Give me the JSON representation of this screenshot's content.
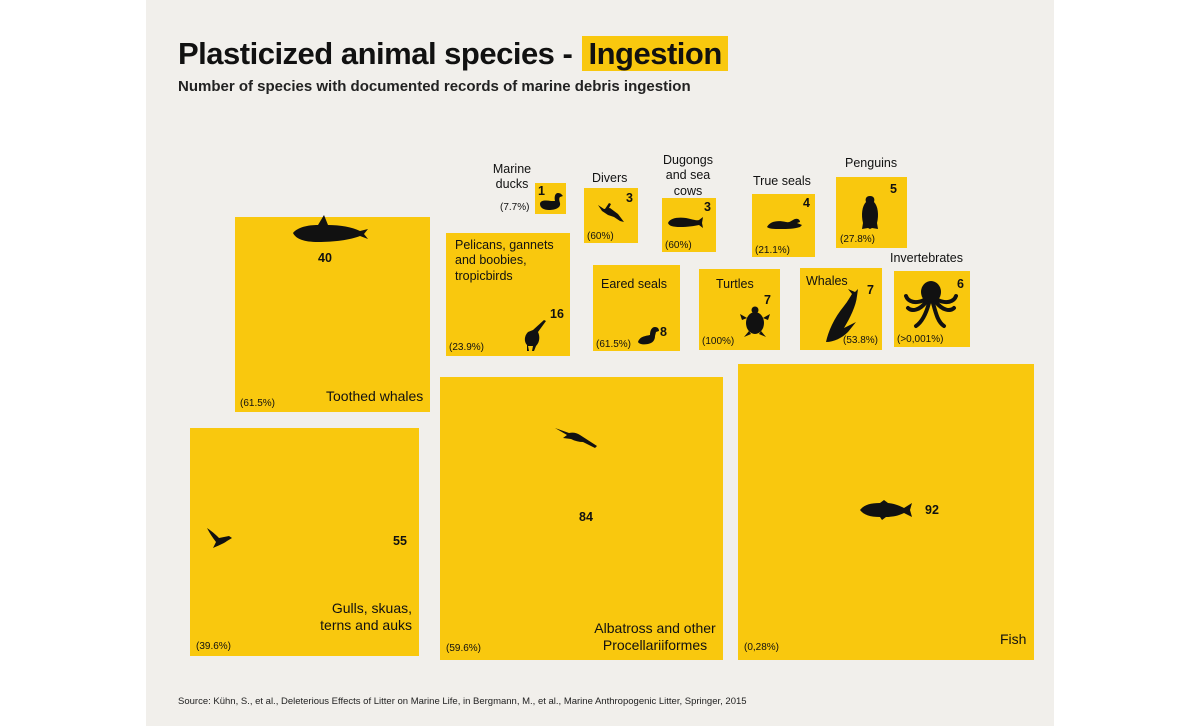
{
  "title": {
    "prefix": "Plasticized animal species - ",
    "highlight": "Ingestion"
  },
  "subtitle": "Number of species with documented records of marine debris ingestion",
  "source": "Source: Kühn, S., et al., Deleterious Effects of Litter on Marine Life, in Bergmann, M., et al., Marine Anthropogenic Litter, Springer, 2015",
  "colors": {
    "square": "#f9c80e",
    "background": "#f1efeb",
    "text": "#111111"
  },
  "chart_data": {
    "type": "proportional-squares",
    "title": "Plasticized animal species - Ingestion",
    "subtitle": "Number of species with documented records of marine debris ingestion",
    "categories": [
      "Marine ducks",
      "Divers",
      "Dugongs and sea cows",
      "True seals",
      "Penguins",
      "Toothed whales",
      "Pelicans, gannets and boobies, tropicbirds",
      "Eared seals",
      "Turtles",
      "Whales",
      "Invertebrates",
      "Gulls, skuas, terns and auks",
      "Albatross and other Procellariiformes",
      "Fish"
    ],
    "values": [
      1,
      3,
      3,
      4,
      5,
      40,
      16,
      8,
      7,
      7,
      6,
      55,
      84,
      92
    ],
    "percentages": [
      "(7.7%)",
      "(60%)",
      "(60%)",
      "(21.1%)",
      "(27.8%)",
      "(61.5%)",
      "(23.9%)",
      "(61.5%)",
      "(100%)",
      "(53.8%)",
      "(>0,001%)",
      "(39.6%)",
      "(59.6%)",
      "(0,28%)"
    ],
    "icons": [
      "duck-icon",
      "diver-icon",
      "dugong-icon",
      "seal-icon",
      "penguin-icon",
      "orca-icon",
      "pelican-icon",
      "sea-lion-icon",
      "turtle-icon",
      "whale-icon",
      "octopus-icon",
      "gull-icon",
      "albatross-icon",
      "fish-icon"
    ],
    "items": [
      {
        "label": "Marine ducks",
        "value": "1",
        "pct": "(7.7%)",
        "icon": "duck-icon"
      },
      {
        "label": "Divers",
        "value": "3",
        "pct": "(60%)",
        "icon": "diver-icon"
      },
      {
        "label": "Dugongs and sea cows",
        "value": "3",
        "pct": "(60%)",
        "icon": "dugong-icon"
      },
      {
        "label": "True seals",
        "value": "4",
        "pct": "(21.1%)",
        "icon": "seal-icon"
      },
      {
        "label": "Penguins",
        "value": "5",
        "pct": "(27.8%)",
        "icon": "penguin-icon"
      },
      {
        "label": "Toothed whales",
        "value": "40",
        "pct": "(61.5%)",
        "icon": "orca-icon"
      },
      {
        "label": "Pelicans, gannets and boobies, tropicbirds",
        "value": "16",
        "pct": "(23.9%)",
        "icon": "pelican-icon"
      },
      {
        "label": "Eared seals",
        "value": "8",
        "pct": "(61.5%)",
        "icon": "sea-lion-icon"
      },
      {
        "label": "Turtles",
        "value": "7",
        "pct": "(100%)",
        "icon": "turtle-icon"
      },
      {
        "label": "Whales",
        "value": "7",
        "pct": "(53.8%)",
        "icon": "whale-icon"
      },
      {
        "label": "Invertebrates",
        "value": "6",
        "pct": "(>0,001%)",
        "icon": "octopus-icon"
      },
      {
        "label": "Gulls, skuas, terns and auks",
        "value": "55",
        "pct": "(39.6%)",
        "icon": "gull-icon"
      },
      {
        "label": "Albatross and other Procellariiformes",
        "value": "84",
        "pct": "(59.6%)",
        "icon": "albatross-icon"
      },
      {
        "label": "Fish",
        "value": "92",
        "pct": "(0,28%)",
        "icon": "fish-icon"
      }
    ]
  }
}
